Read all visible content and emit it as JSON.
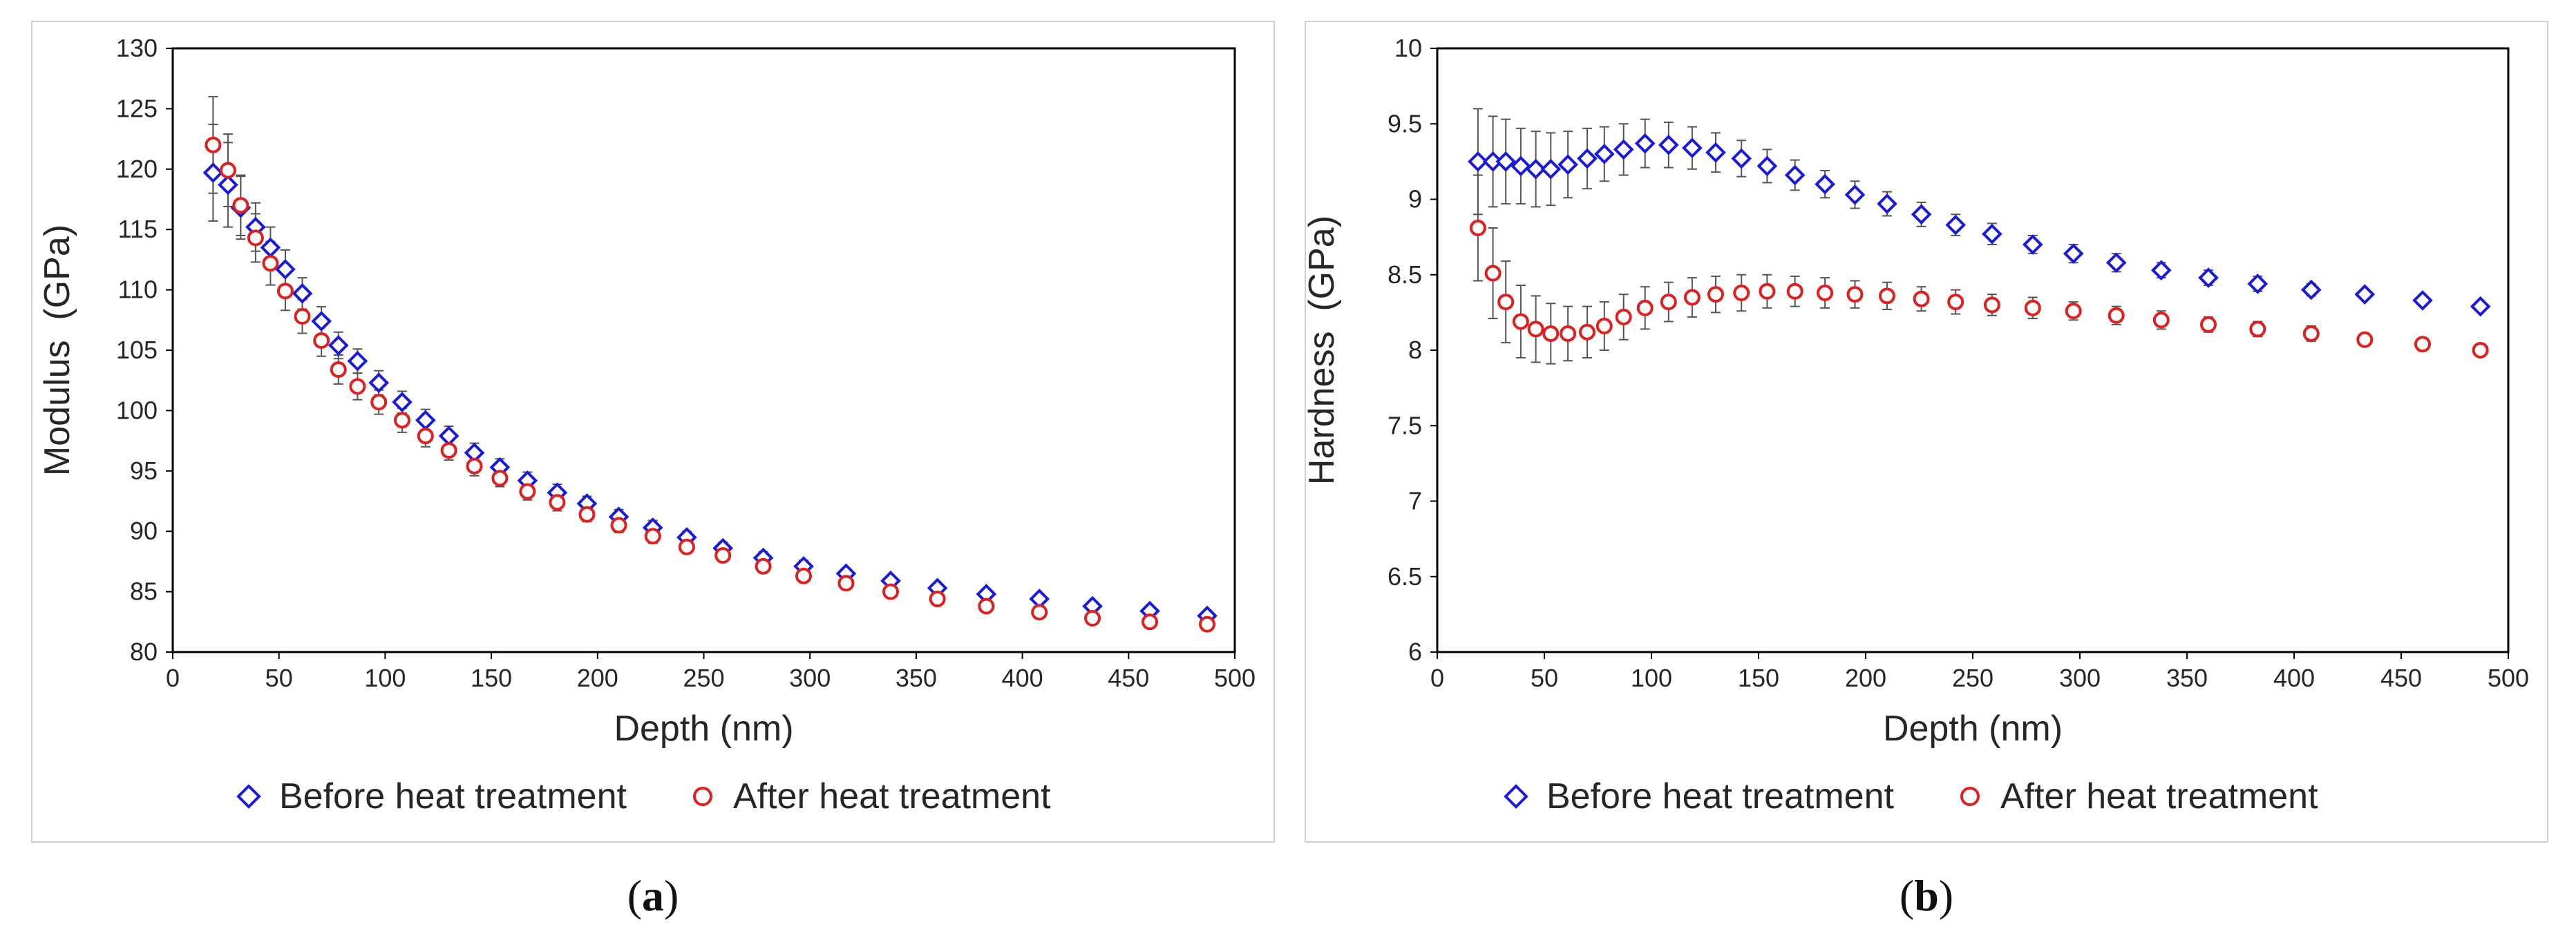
{
  "chart_data": [
    {
      "type": "scatter",
      "panel_label": "a",
      "xlabel": "Depth (nm)",
      "ylabel": "Modulus  (GPa)",
      "xlim": [
        0,
        500
      ],
      "ylim": [
        80,
        130
      ],
      "xticks": [
        0,
        50,
        100,
        150,
        200,
        250,
        300,
        350,
        400,
        450,
        500
      ],
      "yticks": [
        80,
        85,
        90,
        95,
        100,
        105,
        110,
        115,
        120,
        125,
        130
      ],
      "legend_position": "bottom",
      "series": [
        {
          "name": "Before heat treatment",
          "marker": "diamond",
          "color": "#1a1adb",
          "x": [
            19,
            26,
            32,
            39,
            46,
            53,
            61,
            70,
            78,
            87,
            97,
            108,
            119,
            130,
            142,
            154,
            167,
            181,
            195,
            210,
            226,
            242,
            259,
            278,
            297,
            317,
            338,
            360,
            383,
            408,
            433,
            460,
            487
          ],
          "y": [
            119.7,
            118.7,
            116.8,
            115.2,
            113.5,
            111.7,
            109.7,
            107.4,
            105.4,
            104.1,
            102.3,
            100.7,
            99.2,
            97.9,
            96.5,
            95.3,
            94.2,
            93.2,
            92.3,
            91.2,
            90.3,
            89.5,
            88.6,
            87.8,
            87.1,
            86.5,
            85.9,
            85.3,
            84.8,
            84.4,
            83.8,
            83.4,
            83.0
          ],
          "err": [
            4.0,
            3.5,
            2.6,
            2.0,
            1.7,
            1.6,
            1.3,
            1.2,
            1.1,
            1.0,
            1.0,
            0.9,
            0.9,
            0.8,
            0.8,
            0.7,
            0.7,
            0.7,
            0.6,
            0.6,
            0.6,
            0.5,
            0.5,
            0.5,
            0.5,
            0.4,
            0.4,
            0.4,
            0.4,
            0.3,
            0.3,
            0.3,
            0.3
          ]
        },
        {
          "name": "After heat treatment",
          "marker": "circle",
          "color": "#e01f1f",
          "x": [
            19,
            26,
            32,
            39,
            46,
            53,
            61,
            70,
            78,
            87,
            97,
            108,
            119,
            130,
            142,
            154,
            167,
            181,
            195,
            210,
            226,
            242,
            259,
            278,
            297,
            317,
            338,
            360,
            383,
            408,
            433,
            460,
            487
          ],
          "y": [
            122.0,
            119.9,
            117.0,
            114.3,
            112.2,
            109.9,
            107.8,
            105.8,
            103.4,
            102.0,
            100.7,
            99.2,
            97.9,
            96.7,
            95.4,
            94.4,
            93.3,
            92.4,
            91.4,
            90.5,
            89.6,
            88.7,
            88.0,
            87.1,
            86.3,
            85.7,
            85.0,
            84.4,
            83.8,
            83.3,
            82.8,
            82.5,
            82.3
          ],
          "err": [
            4.0,
            3.0,
            2.5,
            2.0,
            1.8,
            1.6,
            1.4,
            1.3,
            1.2,
            1.1,
            1.0,
            1.0,
            0.9,
            0.8,
            0.8,
            0.7,
            0.7,
            0.7,
            0.6,
            0.6,
            0.6,
            0.5,
            0.5,
            0.5,
            0.5,
            0.4,
            0.4,
            0.4,
            0.4,
            0.3,
            0.3,
            0.3,
            0.3
          ]
        }
      ]
    },
    {
      "type": "scatter",
      "panel_label": "b",
      "xlabel": "Depth (nm)",
      "ylabel": "Hardness  (GPa)",
      "xlim": [
        0,
        500
      ],
      "ylim": [
        6,
        10
      ],
      "xticks": [
        0,
        50,
        100,
        150,
        200,
        250,
        300,
        350,
        400,
        450,
        500
      ],
      "yticks": [
        6,
        6.5,
        7,
        7.5,
        8,
        8.5,
        9,
        9.5,
        10
      ],
      "legend_position": "bottom",
      "series": [
        {
          "name": "Before heat treatment",
          "marker": "diamond",
          "color": "#1a1adb",
          "x": [
            19,
            26,
            32,
            39,
            46,
            53,
            61,
            70,
            78,
            87,
            97,
            108,
            119,
            130,
            142,
            154,
            167,
            181,
            195,
            210,
            226,
            242,
            259,
            278,
            297,
            317,
            338,
            360,
            383,
            408,
            433,
            460,
            487
          ],
          "y": [
            9.25,
            9.25,
            9.25,
            9.22,
            9.2,
            9.2,
            9.23,
            9.27,
            9.3,
            9.33,
            9.37,
            9.36,
            9.34,
            9.31,
            9.27,
            9.22,
            9.16,
            9.1,
            9.03,
            8.97,
            8.9,
            8.83,
            8.77,
            8.7,
            8.64,
            8.58,
            8.53,
            8.48,
            8.44,
            8.4,
            8.37,
            8.33,
            8.29
          ],
          "err": [
            0.35,
            0.3,
            0.28,
            0.25,
            0.25,
            0.24,
            0.22,
            0.2,
            0.18,
            0.17,
            0.16,
            0.15,
            0.14,
            0.13,
            0.12,
            0.11,
            0.1,
            0.09,
            0.09,
            0.08,
            0.08,
            0.07,
            0.07,
            0.06,
            0.06,
            0.06,
            0.05,
            0.05,
            0.05,
            0.04,
            0.03,
            0.03,
            0.03
          ]
        },
        {
          "name": "After heat treatment",
          "marker": "circle",
          "color": "#e01f1f",
          "x": [
            19,
            26,
            32,
            39,
            46,
            53,
            61,
            70,
            78,
            87,
            97,
            108,
            119,
            130,
            142,
            154,
            167,
            181,
            195,
            210,
            226,
            242,
            259,
            278,
            297,
            317,
            338,
            360,
            383,
            408,
            433,
            460,
            487
          ],
          "y": [
            8.81,
            8.51,
            8.32,
            8.19,
            8.14,
            8.11,
            8.11,
            8.12,
            8.16,
            8.22,
            8.28,
            8.32,
            8.35,
            8.37,
            8.38,
            8.39,
            8.39,
            8.38,
            8.37,
            8.36,
            8.34,
            8.32,
            8.3,
            8.28,
            8.26,
            8.23,
            8.2,
            8.17,
            8.14,
            8.11,
            8.07,
            8.04,
            8.0
          ],
          "err": [
            0.35,
            0.3,
            0.27,
            0.24,
            0.22,
            0.2,
            0.18,
            0.17,
            0.16,
            0.15,
            0.14,
            0.13,
            0.13,
            0.12,
            0.12,
            0.11,
            0.1,
            0.1,
            0.09,
            0.09,
            0.08,
            0.08,
            0.07,
            0.07,
            0.06,
            0.06,
            0.06,
            0.05,
            0.05,
            0.05,
            0.03,
            0.03,
            0.03
          ]
        }
      ]
    }
  ],
  "captions": {
    "a": "a",
    "b": "b"
  }
}
